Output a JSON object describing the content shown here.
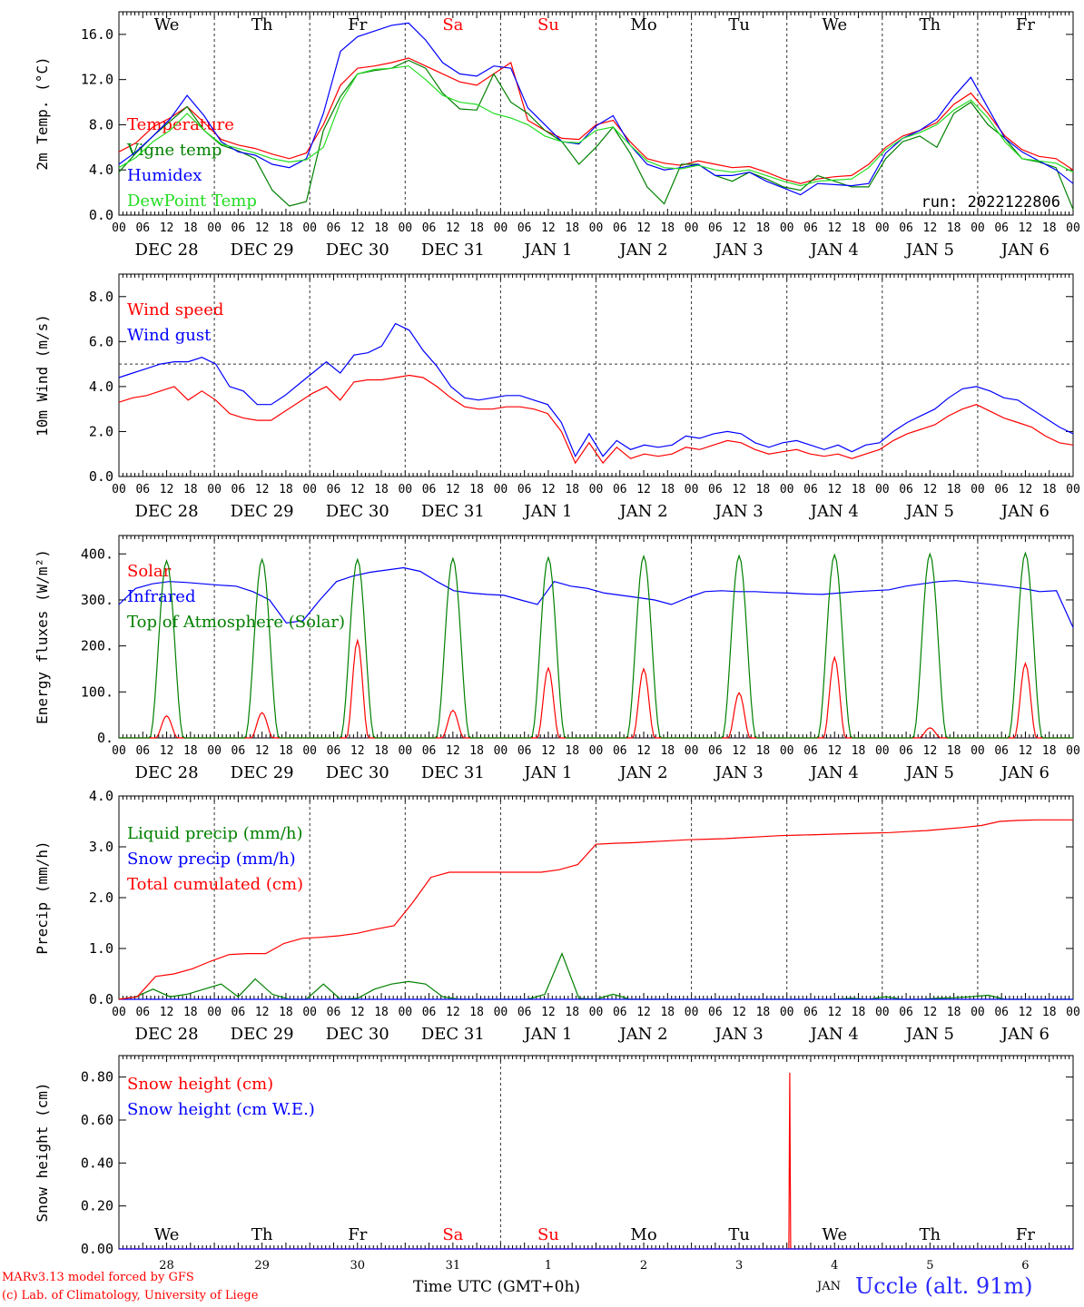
{
  "footer": {
    "credit_line1": "MARv3.13 model forced by GFS",
    "credit_line2": "(c) Lab. of Climatology, University of Liege",
    "x_axis_label": "Time UTC (GMT+0h)",
    "month_label": "JAN",
    "station": "Uccle (alt. 91m)"
  },
  "weekdays": [
    "We",
    "Th",
    "Fr",
    "Sa",
    "Su",
    "Mo",
    "Tu",
    "We",
    "Th",
    "Fr"
  ],
  "weekend_days": [
    "Sa",
    "Su"
  ],
  "date_labels": [
    "DEC 28",
    "DEC 29",
    "DEC 30",
    "DEC 31",
    "JAN  1",
    "JAN  2",
    "JAN  3",
    "JAN  4",
    "JAN  5",
    "JAN  6"
  ],
  "hour_labels": [
    "00",
    "06",
    "12",
    "18"
  ],
  "final_hour_label": "00",
  "day_numbers": [
    "28",
    "29",
    "30",
    "31",
    "1",
    "2",
    "3",
    "4",
    "5",
    "6"
  ],
  "colors": {
    "red": "#ff0000",
    "green": "#008000",
    "blue": "#0000ff",
    "lightgreen": "#22dd22"
  },
  "chart_data": [
    {
      "type": "line",
      "ylabel": "2m Temp. (°C)",
      "ylim": [
        0,
        18
      ],
      "yticks": [
        "0.0",
        "4.0",
        "8.0",
        "12.0",
        "16.0"
      ],
      "ytick_values": [
        0,
        4,
        8,
        12,
        16
      ],
      "annotation": "run: 2022122806",
      "x_hours_step": 6,
      "series": [
        {
          "name": "Temperature",
          "color": "red",
          "values": [
            5.6,
            6.4,
            7.8,
            8.6,
            9.6,
            8.2,
            6.7,
            6.2,
            5.9,
            5.4,
            5.0,
            5.5,
            8.0,
            11.5,
            13.0,
            13.2,
            13.5,
            13.9,
            13.2,
            12.5,
            11.8,
            11.5,
            12.5,
            13.5,
            8.4,
            7.5,
            6.8,
            6.7,
            8.0,
            8.4,
            6.5,
            5.0,
            4.6,
            4.4,
            4.8,
            4.5,
            4.2,
            4.3,
            3.8,
            3.2,
            2.8,
            3.2,
            3.4,
            3.5,
            4.5,
            6.0,
            7.0,
            7.5,
            8.2,
            9.8,
            10.8,
            9.0,
            7.0,
            5.8,
            5.2,
            5.0,
            4.0
          ]
        },
        {
          "name": "Vigne temp",
          "color": "green",
          "values": [
            3.8,
            5.5,
            7.0,
            8.3,
            9.6,
            7.5,
            6.2,
            5.7,
            5.0,
            2.2,
            0.8,
            1.2,
            7.5,
            10.5,
            12.5,
            12.8,
            13.0,
            13.7,
            13.0,
            10.8,
            9.4,
            9.3,
            12.5,
            10.0,
            9.0,
            7.5,
            6.5,
            4.5,
            6.0,
            7.8,
            5.5,
            2.5,
            1.0,
            4.5,
            4.5,
            3.5,
            3.0,
            3.8,
            3.2,
            2.5,
            2.2,
            3.5,
            3.0,
            2.5,
            2.5,
            5.0,
            6.5,
            7.0,
            6.0,
            9.0,
            10.0,
            8.0,
            6.8,
            5.0,
            4.7,
            4.2,
            0.5
          ]
        },
        {
          "name": "Humidex",
          "color": "blue",
          "values": [
            4.5,
            5.6,
            7.0,
            8.5,
            10.6,
            8.8,
            6.5,
            5.6,
            5.3,
            4.5,
            4.2,
            5.0,
            9.0,
            14.5,
            15.8,
            16.3,
            16.8,
            17.0,
            15.5,
            13.5,
            12.5,
            12.3,
            13.2,
            13.0,
            9.5,
            8.0,
            6.5,
            6.3,
            7.9,
            8.8,
            6.2,
            4.5,
            4.0,
            4.2,
            4.5,
            3.5,
            3.5,
            3.8,
            3.0,
            2.4,
            1.8,
            2.8,
            2.7,
            2.6,
            2.8,
            5.5,
            6.8,
            7.5,
            8.5,
            10.5,
            12.2,
            9.5,
            6.8,
            5.6,
            4.8,
            4.0,
            2.8
          ]
        },
        {
          "name": "DewPoint Temp",
          "color": "lightgreen",
          "values": [
            4.2,
            5.1,
            6.5,
            7.5,
            9.0,
            7.5,
            6.3,
            5.9,
            5.5,
            5.0,
            4.7,
            4.9,
            6.0,
            10.0,
            12.5,
            12.9,
            13.0,
            13.2,
            12.0,
            10.6,
            10.0,
            9.8,
            9.0,
            8.6,
            8.0,
            7.0,
            6.5,
            6.4,
            7.5,
            7.8,
            6.2,
            4.8,
            4.2,
            4.1,
            4.4,
            4.0,
            3.8,
            4.0,
            3.5,
            3.0,
            2.6,
            3.0,
            3.1,
            3.2,
            4.2,
            5.8,
            6.8,
            7.3,
            8.0,
            9.3,
            10.2,
            8.6,
            6.5,
            5.0,
            4.8,
            4.6,
            3.8
          ]
        }
      ]
    },
    {
      "type": "line",
      "ylabel": "10m Wind (m/s)",
      "ylim": [
        0,
        9
      ],
      "yticks": [
        "0.0",
        "2.0",
        "4.0",
        "6.0",
        "8.0"
      ],
      "ytick_values": [
        0,
        2,
        4,
        6,
        8
      ],
      "reference_line": 5,
      "x_hours_step": 6,
      "series": [
        {
          "name": "Wind speed",
          "color": "red",
          "values": [
            3.3,
            3.5,
            3.6,
            3.8,
            4.0,
            3.4,
            3.8,
            3.4,
            2.8,
            2.6,
            2.5,
            2.5,
            2.9,
            3.3,
            3.7,
            4.0,
            3.4,
            4.2,
            4.3,
            4.3,
            4.4,
            4.5,
            4.4,
            4.0,
            3.5,
            3.1,
            3.0,
            3.0,
            3.1,
            3.1,
            3.0,
            2.8,
            2.0,
            0.6,
            1.5,
            0.6,
            1.3,
            0.8,
            1.0,
            0.9,
            1.0,
            1.3,
            1.2,
            1.4,
            1.6,
            1.5,
            1.2,
            1.0,
            1.1,
            1.2,
            1.0,
            0.9,
            1.0,
            0.8,
            1.0,
            1.2,
            1.6,
            1.9,
            2.1,
            2.3,
            2.7,
            3.0,
            3.2,
            2.9,
            2.6,
            2.4,
            2.2,
            1.8,
            1.5,
            1.4
          ]
        },
        {
          "name": "Wind gust",
          "color": "blue",
          "values": [
            4.4,
            4.6,
            4.8,
            5.0,
            5.1,
            5.1,
            5.3,
            5.0,
            4.0,
            3.8,
            3.2,
            3.2,
            3.6,
            4.1,
            4.6,
            5.1,
            4.6,
            5.4,
            5.5,
            5.8,
            6.8,
            6.5,
            5.6,
            4.9,
            4.0,
            3.5,
            3.4,
            3.5,
            3.6,
            3.6,
            3.4,
            3.2,
            2.4,
            0.9,
            1.9,
            0.9,
            1.6,
            1.2,
            1.4,
            1.3,
            1.4,
            1.8,
            1.7,
            1.9,
            2.0,
            1.9,
            1.5,
            1.3,
            1.5,
            1.6,
            1.4,
            1.2,
            1.4,
            1.1,
            1.4,
            1.5,
            2.0,
            2.4,
            2.7,
            3.0,
            3.5,
            3.9,
            4.0,
            3.8,
            3.5,
            3.4,
            3.0,
            2.6,
            2.2,
            1.9
          ]
        }
      ]
    },
    {
      "type": "line",
      "ylabel": "Energy fluxes (W/m²)",
      "ylim": [
        0,
        440
      ],
      "yticks": [
        "0.",
        "100.",
        "200.",
        "300.",
        "400."
      ],
      "ytick_values": [
        0,
        100,
        200,
        300,
        400
      ],
      "x_hours_step": 6,
      "series": [
        {
          "name": "Solar",
          "color": "red",
          "daily_peak_hour": 12,
          "daily_peaks": [
            48,
            55,
            212,
            60,
            152,
            150,
            98,
            175,
            22,
            162
          ]
        },
        {
          "name": "Infrared",
          "color": "blue",
          "values": [
            290,
            325,
            335,
            340,
            338,
            335,
            332,
            330,
            318,
            300,
            250,
            255,
            300,
            340,
            352,
            360,
            365,
            370,
            362,
            340,
            320,
            315,
            312,
            310,
            300,
            290,
            340,
            330,
            325,
            315,
            310,
            305,
            300,
            290,
            305,
            318,
            320,
            318,
            318,
            316,
            315,
            313,
            312,
            315,
            318,
            320,
            322,
            330,
            335,
            340,
            342,
            338,
            334,
            330,
            325,
            318,
            320,
            240
          ]
        },
        {
          "name": "Top of Atmosphere (Solar)",
          "color": "green",
          "daily_peak_hour": 12,
          "daily_peaks": [
            385,
            388,
            388,
            390,
            392,
            395,
            396,
            398,
            400,
            402
          ]
        }
      ]
    },
    {
      "type": "line",
      "ylabel": "Precip (mm/h)",
      "ylim": [
        0,
        4
      ],
      "yticks": [
        "0.0",
        "1.0",
        "2.0",
        "3.0",
        "4.0"
      ],
      "ytick_values": [
        0,
        1,
        2,
        3,
        4
      ],
      "x_hours_step": 6,
      "series": [
        {
          "name": "Liquid precip (mm/h)",
          "color": "green",
          "values": [
            0,
            0.05,
            0.2,
            0.05,
            0.1,
            0.2,
            0.3,
            0.05,
            0.4,
            0.1,
            0,
            0,
            0.3,
            0,
            0.02,
            0.2,
            0.3,
            0.35,
            0.3,
            0.05,
            0,
            0,
            0,
            0,
            0,
            0.1,
            0.9,
            0.02,
            0,
            0.1,
            0,
            0,
            0,
            0,
            0,
            0,
            0,
            0,
            0,
            0,
            0,
            0,
            0,
            0.02,
            0,
            0.05,
            0,
            0,
            0.02,
            0.03,
            0.05,
            0.08,
            0,
            0,
            0,
            0,
            0
          ]
        },
        {
          "name": "Snow precip (mm/h)",
          "color": "blue",
          "values": [
            0,
            0,
            0,
            0,
            0,
            0,
            0,
            0,
            0,
            0,
            0,
            0,
            0,
            0,
            0,
            0,
            0,
            0,
            0,
            0,
            0,
            0,
            0,
            0,
            0,
            0,
            0,
            0,
            0,
            0,
            0,
            0,
            0,
            0,
            0,
            0,
            0,
            0,
            0,
            0,
            0,
            0,
            0,
            0,
            0,
            0,
            0,
            0,
            0,
            0,
            0,
            0,
            0,
            0,
            0,
            0,
            0
          ]
        },
        {
          "name": "Total cumulated (cm)",
          "color": "red",
          "values": [
            0,
            0.05,
            0.45,
            0.5,
            0.6,
            0.75,
            0.88,
            0.9,
            0.9,
            1.1,
            1.2,
            1.22,
            1.25,
            1.3,
            1.38,
            1.45,
            1.9,
            2.4,
            2.5,
            2.5,
            2.5,
            2.5,
            2.5,
            2.5,
            2.55,
            2.65,
            3.05,
            3.07,
            3.08,
            3.1,
            3.12,
            3.14,
            3.15,
            3.16,
            3.18,
            3.2,
            3.22,
            3.23,
            3.24,
            3.25,
            3.26,
            3.27,
            3.28,
            3.3,
            3.32,
            3.35,
            3.38,
            3.42,
            3.5,
            3.52,
            3.53,
            3.53,
            3.53
          ]
        }
      ]
    },
    {
      "type": "line",
      "ylabel": "Snow height (cm)",
      "ylim": [
        0,
        0.9
      ],
      "yticks": [
        "0.00",
        "0.20",
        "0.40",
        "0.60",
        "0.80"
      ],
      "ytick_values": [
        0,
        0.2,
        0.4,
        0.6,
        0.8
      ],
      "series": [
        {
          "name": "Snow height (cm)",
          "color": "red",
          "spike_day": 7.03,
          "spike_value": 0.82
        },
        {
          "name": "Snow height (cm W.E.)",
          "color": "blue",
          "values": [
            0,
            0
          ]
        }
      ]
    }
  ]
}
